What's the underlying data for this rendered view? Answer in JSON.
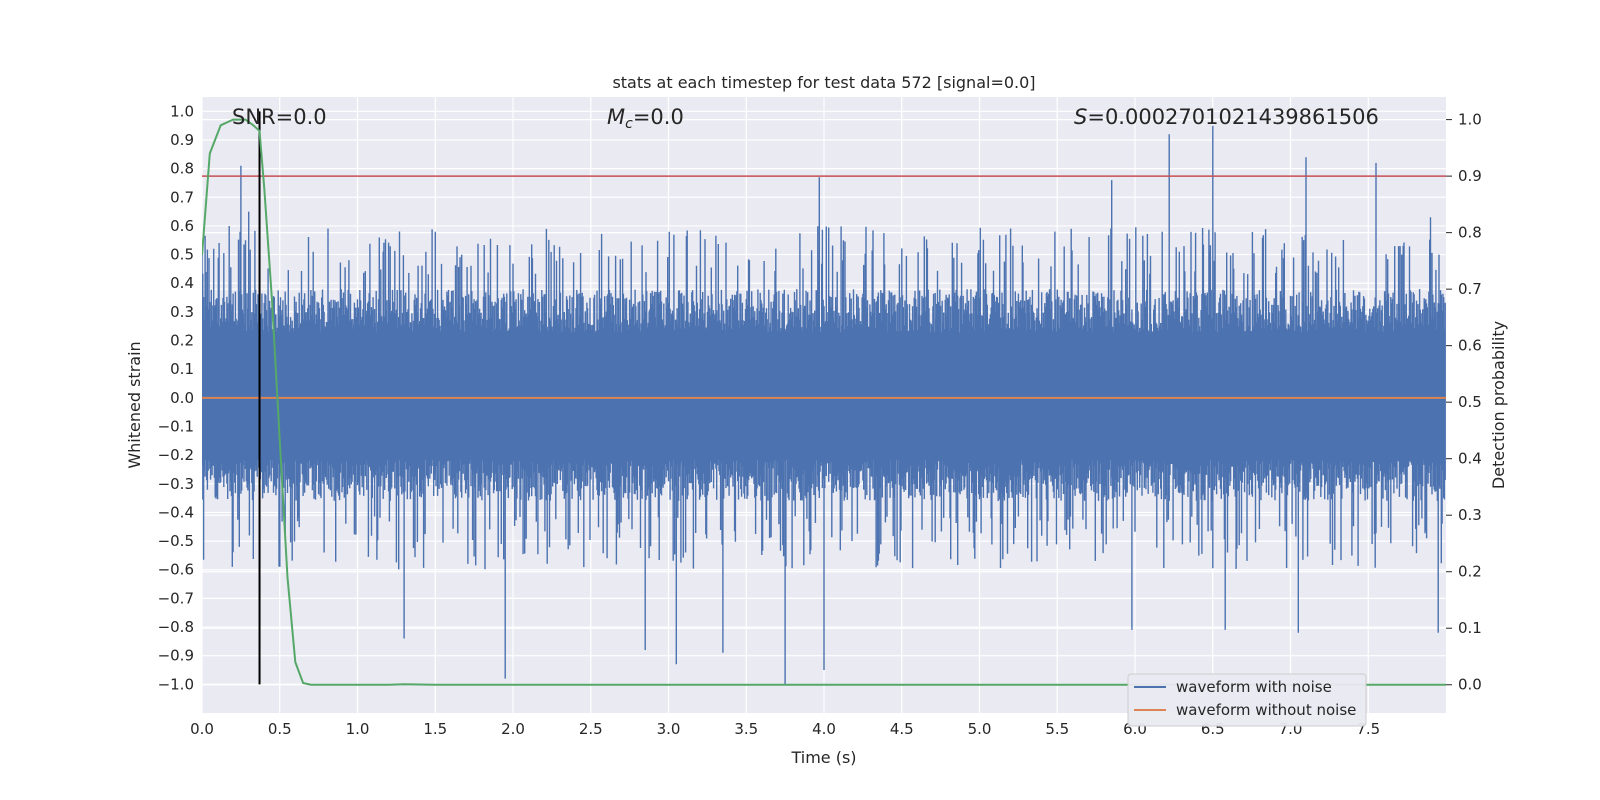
{
  "chart_data": {
    "type": "line",
    "title": "stats at each timestep for test data 572 [signal=0.0]",
    "xlabel": "Time (s)",
    "ylabel": "Whitened strain",
    "y2label": "Detection probability",
    "xlim": [
      0.0,
      8.0
    ],
    "ylim": [
      -1.1,
      1.05
    ],
    "y2lim": [
      -0.05,
      1.04
    ],
    "x_ticks": [
      "0.0",
      "0.5",
      "1.0",
      "1.5",
      "2.0",
      "2.5",
      "3.0",
      "3.5",
      "4.0",
      "4.5",
      "5.0",
      "5.5",
      "6.0",
      "6.5",
      "7.0",
      "7.5"
    ],
    "y_ticks": [
      "1.0",
      "0.9",
      "0.8",
      "0.7",
      "0.6",
      "0.5",
      "0.4",
      "0.3",
      "0.2",
      "0.1",
      "0.0",
      "−0.1",
      "−0.2",
      "−0.3",
      "−0.4",
      "−0.5",
      "−0.6",
      "−0.7",
      "−0.8",
      "−0.9",
      "−1.0"
    ],
    "y2_ticks": [
      "1.0",
      "0.9",
      "0.8",
      "0.7",
      "0.6",
      "0.5",
      "0.4",
      "0.3",
      "0.2",
      "0.1",
      "0.0"
    ],
    "annotations": {
      "snr": "SNR=0.0",
      "mc_symbol": "M",
      "mc_sub": "c",
      "mc_value": "=0.0",
      "s_symbol": "S",
      "s_value": "=0.0002701021439861506"
    },
    "grid": true,
    "legend_position": "lower-right",
    "series": [
      {
        "name": "waveform with noise",
        "color": "#4c72b0",
        "envelope": {
          "band_upper": 0.38,
          "band_lower": -0.36,
          "tall_spikes_up": [
            [
              0.25,
              0.81
            ],
            [
              0.3,
              0.65
            ],
            [
              1.5,
              0.58
            ],
            [
              3.97,
              0.77
            ],
            [
              5.85,
              0.76
            ],
            [
              6.22,
              0.92
            ],
            [
              6.5,
              0.95
            ],
            [
              7.1,
              0.84
            ],
            [
              7.55,
              0.82
            ],
            [
              7.9,
              0.63
            ]
          ],
          "tall_spikes_down": [
            [
              1.3,
              -0.84
            ],
            [
              1.95,
              -0.98
            ],
            [
              2.85,
              -0.88
            ],
            [
              3.05,
              -0.93
            ],
            [
              3.35,
              -0.89
            ],
            [
              3.75,
              -1.0
            ],
            [
              4.0,
              -0.95
            ],
            [
              5.98,
              -0.81
            ],
            [
              6.58,
              -0.81
            ],
            [
              7.05,
              -0.82
            ],
            [
              7.95,
              -0.82
            ]
          ]
        }
      },
      {
        "name": "waveform without noise",
        "color": "#dd8452",
        "values": [
          [
            0.0,
            0.0
          ],
          [
            8.0,
            0.0
          ]
        ]
      },
      {
        "color": "#55a868",
        "axis": "right",
        "values": [
          [
            0.0,
            0.76
          ],
          [
            0.05,
            0.94
          ],
          [
            0.12,
            0.99
          ],
          [
            0.2,
            1.0
          ],
          [
            0.28,
            1.0
          ],
          [
            0.33,
            0.99
          ],
          [
            0.37,
            0.98
          ],
          [
            0.4,
            0.88
          ],
          [
            0.45,
            0.68
          ],
          [
            0.5,
            0.43
          ],
          [
            0.55,
            0.19
          ],
          [
            0.6,
            0.04
          ],
          [
            0.65,
            0.003
          ],
          [
            0.7,
            0.0
          ],
          [
            1.0,
            0.0
          ],
          [
            1.2,
            0.0
          ],
          [
            1.3,
            0.001
          ],
          [
            1.5,
            0.0
          ],
          [
            8.0,
            0.0
          ]
        ]
      }
    ],
    "threshold_line": {
      "color": "#c44e52",
      "y": 0.9,
      "axis": "right"
    },
    "marker_line": {
      "color": "#000000",
      "x": 0.37
    }
  }
}
